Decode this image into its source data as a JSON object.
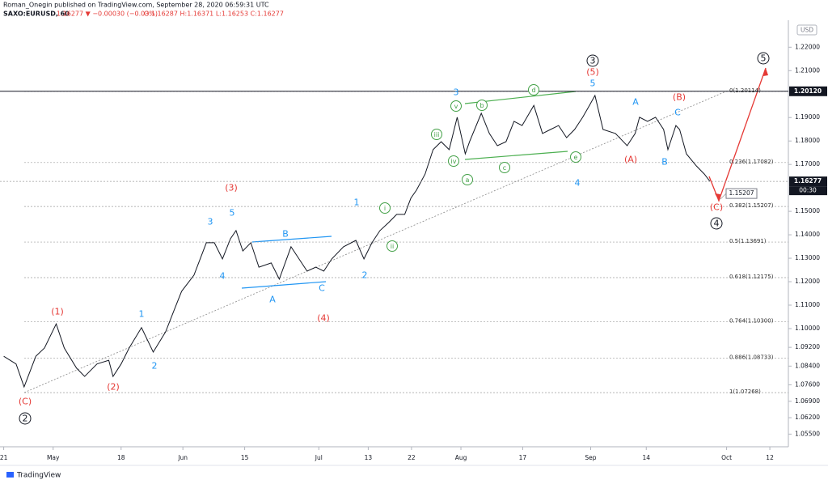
{
  "header": {
    "publisher": "Roman_Onegin published on TradingView.com, September 28, 2020 06:59:31 UTC",
    "symbol": "SAXO:EURUSD, 60",
    "change": "1.16277 ▼ −0.00030 (−0.03%)",
    "ohlc": "O:1.16287 H:1.16371 L:1.16253 C:1.16277",
    "currency": "USD",
    "countdown": "00:30",
    "brand": "TradingView"
  },
  "chart_data": {
    "type": "line",
    "color": "#131722",
    "x": [
      0,
      2.0,
      3.3,
      5.2,
      6.6,
      8.5,
      9.8,
      11.8,
      13.1,
      15.1,
      17.0,
      17.7,
      19.0,
      20.3,
      22.3,
      24.2,
      26.2,
      27.5,
      28.8,
      30.8,
      32.8,
      34.1,
      35.4,
      36.7,
      37.6,
      38.7,
      40.0,
      41.3,
      43.3,
      44.6,
      46.5,
      47.8,
      49.1,
      50.5,
      51.8,
      53.1,
      55.0,
      57.0,
      58.3,
      59.6,
      60.9,
      62.3,
      63.6,
      64.9,
      65.9,
      66.8,
      68.2,
      69.5,
      70.8,
      72.1,
      73.4,
      74.7,
      75.4,
      77.3,
      78.6,
      79.9,
      81.3,
      82.6,
      83.9,
      85.8,
      87.2,
      88.5,
      89.8,
      91.1,
      92.4,
      93.7,
      94.8,
      95.7,
      97.0,
      99.0,
      100.9,
      102.2,
      102.9,
      104.2,
      105.5,
      106.8,
      107.5,
      108.8,
      109.4,
      110.5,
      112.1,
      113.4,
      114.3
    ],
    "values": [
      1.0882,
      1.0849,
      1.0751,
      1.0882,
      1.0917,
      1.102,
      1.0917,
      1.0831,
      1.0796,
      1.0849,
      1.0865,
      1.0796,
      1.0849,
      1.0917,
      1.1004,
      1.09,
      1.0986,
      1.1073,
      1.1159,
      1.1228,
      1.1366,
      1.1366,
      1.1297,
      1.1383,
      1.1418,
      1.1331,
      1.1366,
      1.1262,
      1.128,
      1.1211,
      1.1349,
      1.1297,
      1.1245,
      1.1262,
      1.1245,
      1.1297,
      1.1349,
      1.1376,
      1.1297,
      1.1366,
      1.1418,
      1.1452,
      1.1487,
      1.1487,
      1.1556,
      1.159,
      1.1659,
      1.1763,
      1.1797,
      1.1763,
      1.1901,
      1.1745,
      1.1797,
      1.1918,
      1.1832,
      1.178,
      1.1797,
      1.1884,
      1.1866,
      1.1952,
      1.1832,
      1.1849,
      1.1866,
      1.1814,
      1.1849,
      1.1901,
      1.1952,
      1.1994,
      1.1849,
      1.1832,
      1.178,
      1.1832,
      1.1901,
      1.1884,
      1.1901,
      1.1849,
      1.1763,
      1.1866,
      1.1849,
      1.1745,
      1.1694,
      1.1659,
      1.16277
    ],
    "xlim": [
      -0.6,
      127
    ],
    "xticks": [
      {
        "value": 0,
        "label": "21"
      },
      {
        "value": 8,
        "label": "May"
      },
      {
        "value": 19,
        "label": "18"
      },
      {
        "value": 29,
        "label": "Jun"
      },
      {
        "value": 39,
        "label": "15"
      },
      {
        "value": 51,
        "label": "Jul"
      },
      {
        "value": 59,
        "label": "13"
      },
      {
        "value": 66,
        "label": "22"
      },
      {
        "value": 74,
        "label": "Aug"
      },
      {
        "value": 84,
        "label": "17"
      },
      {
        "value": 95,
        "label": "Sep"
      },
      {
        "value": 104,
        "label": "14"
      },
      {
        "value": 117,
        "label": "Oct"
      },
      {
        "value": 124,
        "label": "12"
      }
    ],
    "ylim": [
      1.0496,
      1.2315
    ],
    "yticks": [
      {
        "value": 1.22,
        "label": "1.22000"
      },
      {
        "value": 1.21,
        "label": "1.21000"
      },
      {
        "value": 1.19,
        "label": "1.19000"
      },
      {
        "value": 1.18,
        "label": "1.18000"
      },
      {
        "value": 1.17,
        "label": "1.17000"
      },
      {
        "value": 1.15,
        "label": "1.15000"
      },
      {
        "value": 1.14,
        "label": "1.14000"
      },
      {
        "value": 1.13,
        "label": "1.13000"
      },
      {
        "value": 1.12,
        "label": "1.12000"
      },
      {
        "value": 1.11,
        "label": "1.11000"
      },
      {
        "value": 1.1,
        "label": "1.10000"
      },
      {
        "value": 1.092,
        "label": "1.09200"
      },
      {
        "value": 1.084,
        "label": "1.08400"
      },
      {
        "value": 1.076,
        "label": "1.07600"
      },
      {
        "value": 1.069,
        "label": "1.06900"
      },
      {
        "value": 1.062,
        "label": "1.06200"
      },
      {
        "value": 1.055,
        "label": "1.05500"
      }
    ],
    "price_labels": [
      {
        "value": 1.2012,
        "label": "1.20120"
      },
      {
        "value": 1.16277,
        "label": "1.16277"
      }
    ],
    "target": {
      "value": 1.15207,
      "label": "1.15207"
    },
    "fib_levels": [
      {
        "value": 1.20114,
        "label": "0(1.20114)"
      },
      {
        "value": 1.17082,
        "label": "0.236(1.17082)"
      },
      {
        "value": 1.15207,
        "label": "0.382(1.15207)"
      },
      {
        "value": 1.13691,
        "label": "0.5(1.13691)"
      },
      {
        "value": 1.12175,
        "label": "0.618(1.12175)"
      },
      {
        "value": 1.103,
        "label": "0.764(1.10300)"
      },
      {
        "value": 1.08733,
        "label": "0.886(1.08733)"
      },
      {
        "value": 1.07268,
        "label": "1(1.07268)"
      }
    ],
    "annotations": [
      {
        "text": "2",
        "color": "#131722",
        "circled": true
      },
      {
        "text": "3",
        "color": "#131722",
        "circled": true
      },
      {
        "text": "4",
        "color": "#131722",
        "circled": true
      },
      {
        "text": "5",
        "color": "#131722",
        "circled": true
      },
      {
        "text": "(C)",
        "color": "#e53935",
        "circled": false
      },
      {
        "text": "(1)",
        "color": "#e53935",
        "circled": false
      },
      {
        "text": "(2)",
        "color": "#e53935",
        "circled": false
      },
      {
        "text": "(3)",
        "color": "#e53935",
        "circled": false
      },
      {
        "text": "(4)",
        "color": "#e53935",
        "circled": false
      },
      {
        "text": "(5)",
        "color": "#e53935",
        "circled": false
      },
      {
        "text": "(B)",
        "color": "#e53935",
        "circled": false
      },
      {
        "text": "(A)",
        "color": "#e53935",
        "circled": false
      },
      {
        "text": "(C)",
        "color": "#e53935",
        "circled": false
      },
      {
        "text": "1",
        "color": "#2196f3",
        "circled": false
      },
      {
        "text": "2",
        "color": "#2196f3",
        "circled": false
      },
      {
        "text": "3",
        "color": "#2196f3",
        "circled": false
      },
      {
        "text": "5",
        "color": "#2196f3",
        "circled": false
      },
      {
        "text": "4",
        "color": "#2196f3",
        "circled": false
      },
      {
        "text": "B",
        "color": "#2196f3",
        "circled": false
      },
      {
        "text": "A",
        "color": "#2196f3",
        "circled": false
      },
      {
        "text": "C",
        "color": "#2196f3",
        "circled": false
      },
      {
        "text": "1",
        "color": "#2196f3",
        "circled": false
      },
      {
        "text": "2",
        "color": "#2196f3",
        "circled": false
      },
      {
        "text": "3",
        "color": "#2196f3",
        "circled": false
      },
      {
        "text": "5",
        "color": "#2196f3",
        "circled": false
      },
      {
        "text": "4",
        "color": "#2196f3",
        "circled": false
      },
      {
        "text": "A",
        "color": "#2196f3",
        "circled": false
      },
      {
        "text": "C",
        "color": "#2196f3",
        "circled": false
      },
      {
        "text": "B",
        "color": "#2196f3",
        "circled": false
      },
      {
        "text": "i",
        "color": "#43a047",
        "circled": true
      },
      {
        "text": "ii",
        "color": "#43a047",
        "circled": true
      },
      {
        "text": "iii",
        "color": "#43a047",
        "circled": true
      },
      {
        "text": "v",
        "color": "#43a047",
        "circled": true
      },
      {
        "text": "iv",
        "color": "#43a047",
        "circled": true
      },
      {
        "text": "a",
        "color": "#43a047",
        "circled": true
      },
      {
        "text": "b",
        "color": "#43a047",
        "circled": true
      },
      {
        "text": "c",
        "color": "#43a047",
        "circled": true
      },
      {
        "text": "d",
        "color": "#43a047",
        "circled": true
      },
      {
        "text": "e",
        "color": "#43a047",
        "circled": true
      }
    ]
  }
}
